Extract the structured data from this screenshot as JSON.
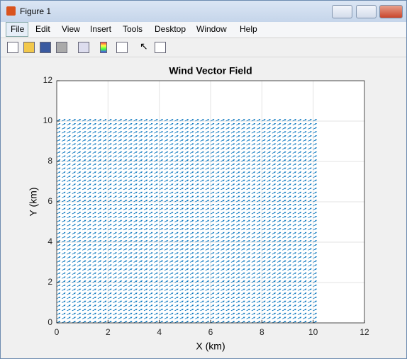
{
  "window": {
    "title": "Figure 1"
  },
  "menu": [
    "File",
    "Edit",
    "View",
    "Insert",
    "Tools",
    "Desktop",
    "Window",
    "Help"
  ],
  "chart_data": {
    "type": "quiver",
    "title": "Wind Vector Field",
    "x_label": "X (km)",
    "y_label": "Y (km)",
    "x": [
      0,
      0.2,
      0.4,
      0.6,
      0.8,
      1,
      1.2,
      1.4,
      1.6,
      1.8,
      2,
      2.2,
      2.4,
      2.6,
      2.8,
      3,
      3.2,
      3.4,
      3.6,
      3.8,
      4,
      4.2,
      4.4,
      4.6,
      4.8,
      5,
      5.2,
      5.4,
      5.6,
      5.8,
      6,
      6.2,
      6.4,
      6.6,
      6.8,
      7,
      7.2,
      7.4,
      7.6,
      7.8,
      8,
      8.2,
      8.4,
      8.6,
      8.8,
      9,
      9.2,
      9.4,
      9.6,
      9.8,
      10
    ],
    "y": [
      0,
      0.2,
      0.4,
      0.6,
      0.8,
      1,
      1.2,
      1.4,
      1.6,
      1.8,
      2,
      2.2,
      2.4,
      2.6,
      2.8,
      3,
      3.2,
      3.4,
      3.6,
      3.8,
      4,
      4.2,
      4.4,
      4.6,
      4.8,
      5,
      5.2,
      5.4,
      5.6,
      5.8,
      6,
      6.2,
      6.4,
      6.6,
      6.8,
      7,
      7.2,
      7.4,
      7.6,
      7.8,
      8,
      8.2,
      8.4,
      8.6,
      8.8,
      9,
      9.2,
      9.4,
      9.6,
      9.8,
      10
    ],
    "u": 1,
    "v": 0.5,
    "color": "#0072bd",
    "xlim": [
      0,
      12
    ],
    "ylim": [
      0,
      12
    ],
    "xticks": [
      0,
      2,
      4,
      6,
      8,
      10,
      12
    ],
    "yticks": [
      0,
      2,
      4,
      6,
      8,
      10,
      12
    ],
    "grid": true
  }
}
